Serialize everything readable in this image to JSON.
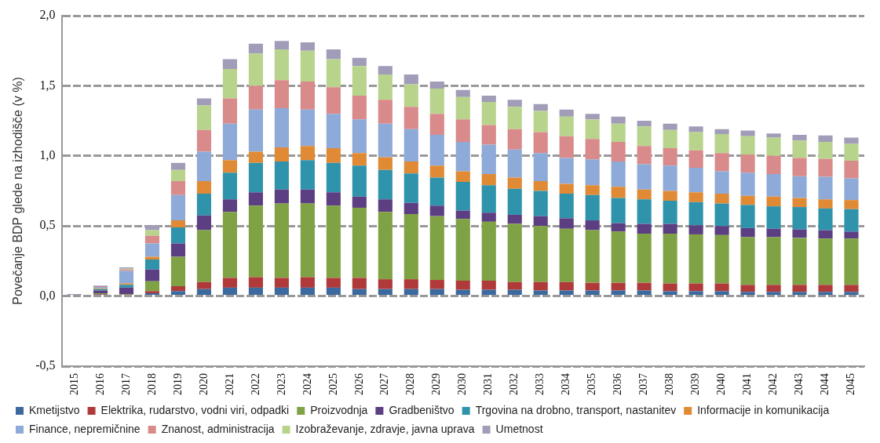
{
  "chart_data": {
    "type": "bar",
    "stacked": true,
    "ylabel": "Povečanje BDP glede na izhodišče (v %)",
    "categories": [
      "2015",
      "2016",
      "2017",
      "2018",
      "2019",
      "2020",
      "2021",
      "2022",
      "2023",
      "2024",
      "2025",
      "2026",
      "2027",
      "2028",
      "2029",
      "2030",
      "2031",
      "2032",
      "2033",
      "2034",
      "2035",
      "2036",
      "2037",
      "2038",
      "2039",
      "2040",
      "2041",
      "2042",
      "2043",
      "2044",
      "2045"
    ],
    "ylim": [
      -0.5,
      2.0
    ],
    "yticks": [
      {
        "value": -0.5,
        "label": "-0,5"
      },
      {
        "value": 0,
        "label": "0,0"
      },
      {
        "value": 0.5,
        "label": "0,5"
      },
      {
        "value": 1.0,
        "label": "1,0"
      },
      {
        "value": 1.5,
        "label": "1,5"
      },
      {
        "value": 2.0,
        "label": "2,0"
      }
    ],
    "grid": "y",
    "legend": "bottom",
    "series": [
      {
        "name": "Kmetijstvo",
        "color": "#3d6a9e",
        "values": [
          0.01,
          0.01,
          null,
          0.02,
          0.035,
          0.05,
          0.06,
          0.06,
          0.06,
          0.06,
          0.06,
          0.05,
          0.05,
          0.05,
          0.05,
          0.045,
          0.045,
          0.045,
          0.04,
          0.04,
          0.04,
          0.04,
          0.04,
          0.035,
          0.035,
          0.035,
          0.03,
          0.03,
          0.03,
          0.03,
          0.03
        ]
      },
      {
        "name": "Elektrika, rudarstvo, vodni viri, odpadki",
        "color": "#b03a3a",
        "values": [
          0,
          0.005,
          0.01,
          0.015,
          0.035,
          0.05,
          0.07,
          0.075,
          0.07,
          0.075,
          0.07,
          0.08,
          0.07,
          0.07,
          0.065,
          0.065,
          0.065,
          0.055,
          0.06,
          0.06,
          0.055,
          0.055,
          0.055,
          0.055,
          0.055,
          0.055,
          0.05,
          0.05,
          0.05,
          0.05,
          0.05
        ]
      },
      {
        "name": "Proizvodnja",
        "color": "#7fa344",
        "values": [
          0,
          0.005,
          0.005,
          0.07,
          0.21,
          0.37,
          0.47,
          0.51,
          0.53,
          0.525,
          0.515,
          0.5,
          0.48,
          0.465,
          0.455,
          0.44,
          0.42,
          0.415,
          0.4,
          0.38,
          0.375,
          0.365,
          0.35,
          0.355,
          0.35,
          0.345,
          0.34,
          0.34,
          0.335,
          0.33,
          0.33
        ]
      },
      {
        "name": "Gradbeništvo",
        "color": "#5c3f82",
        "values": [
          0,
          0.02,
          0.045,
          0.085,
          0.095,
          0.105,
          0.09,
          0.095,
          0.1,
          0.1,
          0.095,
          0.08,
          0.09,
          0.08,
          0.075,
          0.06,
          0.065,
          0.065,
          0.07,
          0.075,
          0.07,
          0.06,
          0.07,
          0.07,
          0.065,
          0.065,
          0.065,
          0.06,
          0.06,
          0.06,
          0.05
        ]
      },
      {
        "name": "Trgovina na drobno, transport, nastanitev",
        "color": "#2f93ac",
        "values": [
          0,
          0.01,
          0.02,
          0.07,
          0.115,
          0.155,
          0.19,
          0.21,
          0.2,
          0.21,
          0.21,
          0.22,
          0.21,
          0.21,
          0.2,
          0.205,
          0.195,
          0.185,
          0.18,
          0.175,
          0.18,
          0.18,
          0.175,
          0.165,
          0.165,
          0.16,
          0.165,
          0.16,
          0.16,
          0.155,
          0.16
        ]
      },
      {
        "name": "Informacije in komunikacija",
        "color": "#e08a35",
        "values": [
          0,
          0.005,
          0.01,
          0.02,
          0.05,
          0.09,
          0.09,
          0.08,
          0.1,
          0.1,
          0.105,
          0.09,
          0.09,
          0.085,
          0.085,
          0.075,
          0.08,
          0.08,
          0.07,
          0.07,
          0.07,
          0.08,
          0.07,
          0.07,
          0.07,
          0.07,
          0.065,
          0.07,
          0.065,
          0.065,
          0.065
        ]
      },
      {
        "name": "Finance, nepremičnine",
        "color": "#8eaad8",
        "values": [
          0,
          0.01,
          0.09,
          0.095,
          0.18,
          0.21,
          0.26,
          0.3,
          0.28,
          0.26,
          0.245,
          0.24,
          0.24,
          0.23,
          0.22,
          0.21,
          0.21,
          0.2,
          0.2,
          0.185,
          0.185,
          0.18,
          0.18,
          0.18,
          0.175,
          0.16,
          0.165,
          0.16,
          0.155,
          0.16,
          0.155
        ]
      },
      {
        "name": "Znanost, administracija",
        "color": "#d98a8a",
        "values": [
          0,
          0.005,
          0.01,
          0.055,
          0.1,
          0.155,
          0.18,
          0.17,
          0.2,
          0.2,
          0.19,
          0.17,
          0.17,
          0.16,
          0.15,
          0.16,
          0.14,
          0.145,
          0.15,
          0.155,
          0.145,
          0.14,
          0.13,
          0.125,
          0.125,
          0.13,
          0.13,
          0.13,
          0.13,
          0.13,
          0.125
        ]
      },
      {
        "name": "Izobraževanje, zdravje, javna uprava",
        "color": "#b8d48c",
        "values": [
          0,
          0,
          0.005,
          0.04,
          0.08,
          0.175,
          0.21,
          0.23,
          0.22,
          0.22,
          0.2,
          0.21,
          0.18,
          0.16,
          0.18,
          0.16,
          0.165,
          0.16,
          0.15,
          0.14,
          0.14,
          0.13,
          0.14,
          0.13,
          0.13,
          0.135,
          0.13,
          0.13,
          0.125,
          0.12,
          0.12
        ]
      },
      {
        "name": "Umetnost",
        "color": "#a19cb8",
        "values": [
          0.005,
          0.005,
          0.01,
          0.035,
          0.05,
          0.05,
          0.07,
          0.07,
          0.06,
          0.06,
          0.07,
          0.06,
          0.06,
          0.07,
          0.05,
          0.05,
          0.045,
          0.05,
          0.05,
          0.05,
          0.04,
          0.05,
          0.04,
          0.045,
          0.04,
          0.035,
          0.04,
          0.03,
          0.04,
          0.045,
          0.045
        ]
      }
    ]
  }
}
